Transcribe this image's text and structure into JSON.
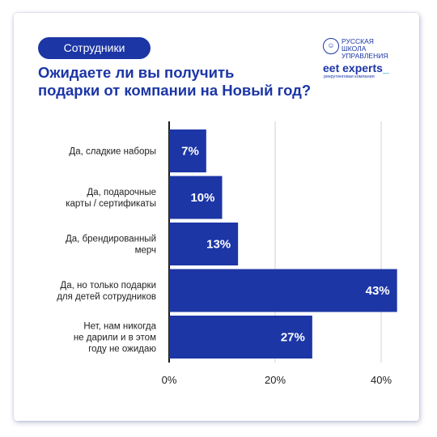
{
  "header": {
    "tag_label": "Сотрудники",
    "title_line1": "Ожидаете ли вы получить",
    "title_line2": "подарки от компании на Новый год?"
  },
  "logo": {
    "school_line1": "РУССКАЯ",
    "school_line2": "ШКОЛА",
    "school_line3": "УПРАВЛЕНИЯ",
    "brand_name": "eet experts",
    "brand_underscore": "_",
    "brand_sub": "рекрутинговая компания"
  },
  "colors": {
    "accent": "#1c36a6",
    "bar": "#1c36a6",
    "grid": "#d0d0d0"
  },
  "chart_data": {
    "type": "bar",
    "orientation": "horizontal",
    "title": "Ожидаете ли вы получить подарки от компании на Новый год?",
    "categories": [
      [
        "Да, сладкие наборы"
      ],
      [
        "Да, подарочные",
        "карты / сертификаты"
      ],
      [
        "Да, брендированный",
        "мерч"
      ],
      [
        "Да, но только подарки",
        "для детей сотрудников"
      ],
      [
        "Нет, нам никогда",
        "не дарили и в этом",
        "году не ожидаю"
      ]
    ],
    "values": [
      7,
      10,
      13,
      43,
      27
    ],
    "value_labels": [
      "7%",
      "10%",
      "13%",
      "43%",
      "27%"
    ],
    "x_ticks": [
      0,
      20,
      40
    ],
    "x_tick_labels": [
      "0%",
      "20%",
      "40%"
    ],
    "xlim": [
      0,
      45
    ],
    "grid": true
  }
}
